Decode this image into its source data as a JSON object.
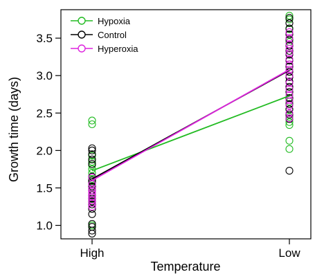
{
  "chart_data": {
    "type": "scatter",
    "xlabel": "Temperature",
    "ylabel": "Growth time (days)",
    "categories": [
      "High",
      "Low"
    ],
    "ylim": [
      0.82,
      3.88
    ],
    "yticks": [
      1.0,
      1.5,
      2.0,
      2.5,
      3.0,
      3.5
    ],
    "ytick_labels": [
      "1.0",
      "1.5",
      "2.0",
      "2.5",
      "3.0",
      "3.5"
    ],
    "legend_position": "top-left",
    "grid": false,
    "series": [
      {
        "name": "Hypoxia",
        "color": "#22bb22",
        "line": [
          1.73,
          2.73
        ],
        "points": {
          "High": [
            2.4,
            2.35,
            1.93,
            1.85,
            1.8,
            1.75,
            1.7,
            1.62,
            1.55,
            1.5,
            1.43,
            1.35,
            1.0
          ],
          "Low": [
            3.8,
            3.75,
            3.62,
            3.45,
            3.3,
            3.15,
            3.0,
            2.85,
            2.7,
            2.65,
            2.55,
            2.45,
            2.38,
            2.34,
            2.13,
            2.02
          ]
        }
      },
      {
        "name": "Control",
        "color": "#000000",
        "line": [
          1.62,
          3.07
        ],
        "points": {
          "High": [
            2.03,
            2.0,
            1.95,
            1.88,
            1.82,
            1.65,
            1.6,
            1.58,
            1.52,
            1.47,
            1.4,
            1.36,
            1.32,
            1.28,
            1.22,
            1.15,
            1.02,
            0.98,
            0.93,
            0.89
          ],
          "Low": [
            3.77,
            3.7,
            3.63,
            3.55,
            3.48,
            3.4,
            3.33,
            3.28,
            3.2,
            3.12,
            3.05,
            2.98,
            2.92,
            2.85,
            2.78,
            2.7,
            2.62,
            2.55,
            2.48,
            2.42,
            1.73
          ]
        }
      },
      {
        "name": "Hyperoxia",
        "color": "#dd22dd",
        "line": [
          1.6,
          3.08
        ],
        "points": {
          "High": [
            1.64,
            1.55,
            1.49,
            1.45,
            1.42,
            1.38,
            1.34,
            1.3,
            1.25
          ],
          "Low": [
            3.58,
            3.5,
            3.42,
            3.36,
            3.3,
            3.22,
            3.15,
            3.08,
            3.0,
            2.9,
            2.82,
            2.74,
            2.67,
            2.6,
            2.5,
            2.43
          ]
        }
      }
    ]
  }
}
